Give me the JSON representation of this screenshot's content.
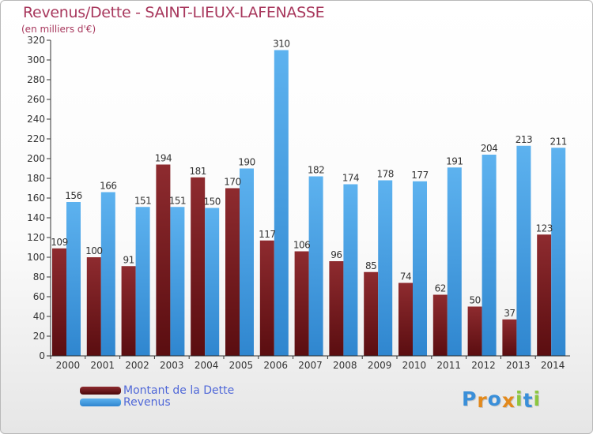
{
  "title": "Revenus/Dette - SAINT-LIEUX-LAFENASSE",
  "subtitle": "(en milliers d'€)",
  "legend": [
    {
      "label": "Montant de la Dette",
      "color": "#7a1c20"
    },
    {
      "label": "Revenus",
      "color": "#4aa3e6"
    }
  ],
  "logo": {
    "text": "Proxiti"
  },
  "colors": {
    "dette": "#7a1c20",
    "revenus": "#4aa3e6",
    "title": "#a8385d",
    "legend_text": "#5068d8"
  },
  "chart_data": {
    "type": "bar",
    "title": "Revenus/Dette - SAINT-LIEUX-LAFENASSE",
    "subtitle": "(en milliers d'€)",
    "categories": [
      "2000",
      "2001",
      "2002",
      "2003",
      "2004",
      "2005",
      "2006",
      "2007",
      "2008",
      "2009",
      "2010",
      "2011",
      "2012",
      "2013",
      "2014"
    ],
    "series": [
      {
        "name": "Montant de la Dette",
        "values": [
          109,
          100,
          91,
          194,
          181,
          170,
          117,
          106,
          96,
          85,
          74,
          62,
          50,
          37,
          123
        ]
      },
      {
        "name": "Revenus",
        "values": [
          156,
          166,
          151,
          151,
          150,
          190,
          310,
          182,
          174,
          178,
          177,
          191,
          204,
          213,
          211
        ]
      }
    ],
    "ylim": [
      0,
      320
    ],
    "yticks": [
      0,
      20,
      40,
      60,
      80,
      100,
      120,
      140,
      160,
      180,
      200,
      220,
      240,
      260,
      280,
      300,
      320
    ],
    "grid": false,
    "legend_position": "bottom-left"
  }
}
